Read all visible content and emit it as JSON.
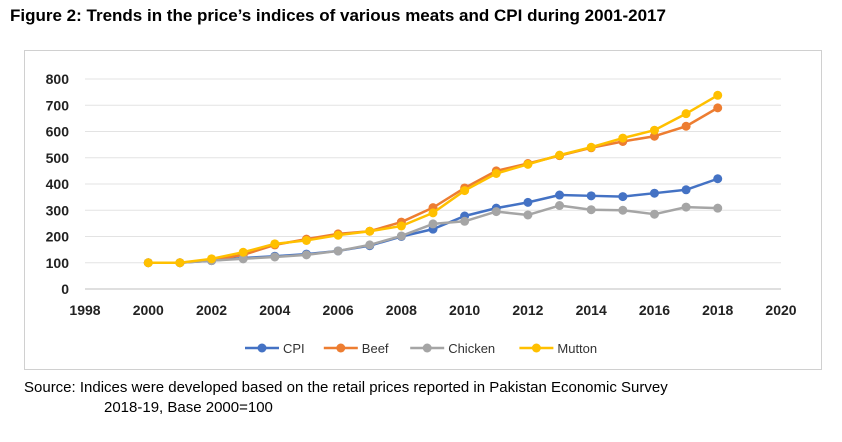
{
  "title": "Figure 2: Trends in the price’s indices of various meats and CPI during 2001-2017",
  "source": {
    "line1": "Source: Indices were developed based on the retail prices reported in Pakistan Economic Survey",
    "line2": "2018-19, Base 2000=100"
  },
  "chart_data": {
    "type": "line",
    "title": "",
    "xlabel": "",
    "ylabel": "",
    "x": [
      2000,
      2001,
      2002,
      2003,
      2004,
      2005,
      2006,
      2007,
      2008,
      2009,
      2010,
      2011,
      2012,
      2013,
      2014,
      2015,
      2016,
      2017,
      2018
    ],
    "xlim": [
      1998,
      2020
    ],
    "ylim": [
      0,
      800
    ],
    "xticks": [
      "1998",
      "2000",
      "2002",
      "2004",
      "2006",
      "2008",
      "2010",
      "2012",
      "2014",
      "2016",
      "2018",
      "2020"
    ],
    "yticks": [
      "0",
      "100",
      "200",
      "300",
      "400",
      "500",
      "600",
      "700",
      "800"
    ],
    "grid": "horizontal",
    "legend_position": "bottom",
    "series": [
      {
        "name": "CPI",
        "color": "#4472C4",
        "values": [
          100,
          100,
          108,
          118,
          125,
          133,
          145,
          165,
          200,
          228,
          278,
          308,
          330,
          358,
          355,
          352,
          365,
          378,
          420
        ]
      },
      {
        "name": "Beef",
        "color": "#ED7D31",
        "values": [
          100,
          100,
          110,
          130,
          168,
          190,
          210,
          220,
          255,
          310,
          385,
          450,
          478,
          508,
          538,
          562,
          582,
          620,
          690
        ]
      },
      {
        "name": "Chicken",
        "color": "#A5A5A5",
        "values": [
          100,
          100,
          108,
          115,
          122,
          130,
          145,
          168,
          202,
          248,
          258,
          295,
          282,
          318,
          302,
          300,
          285,
          312,
          308
        ]
      },
      {
        "name": "Mutton",
        "color": "#FFC000",
        "values": [
          100,
          100,
          115,
          140,
          172,
          185,
          205,
          220,
          240,
          290,
          375,
          440,
          475,
          510,
          540,
          575,
          605,
          668,
          738
        ]
      }
    ]
  }
}
